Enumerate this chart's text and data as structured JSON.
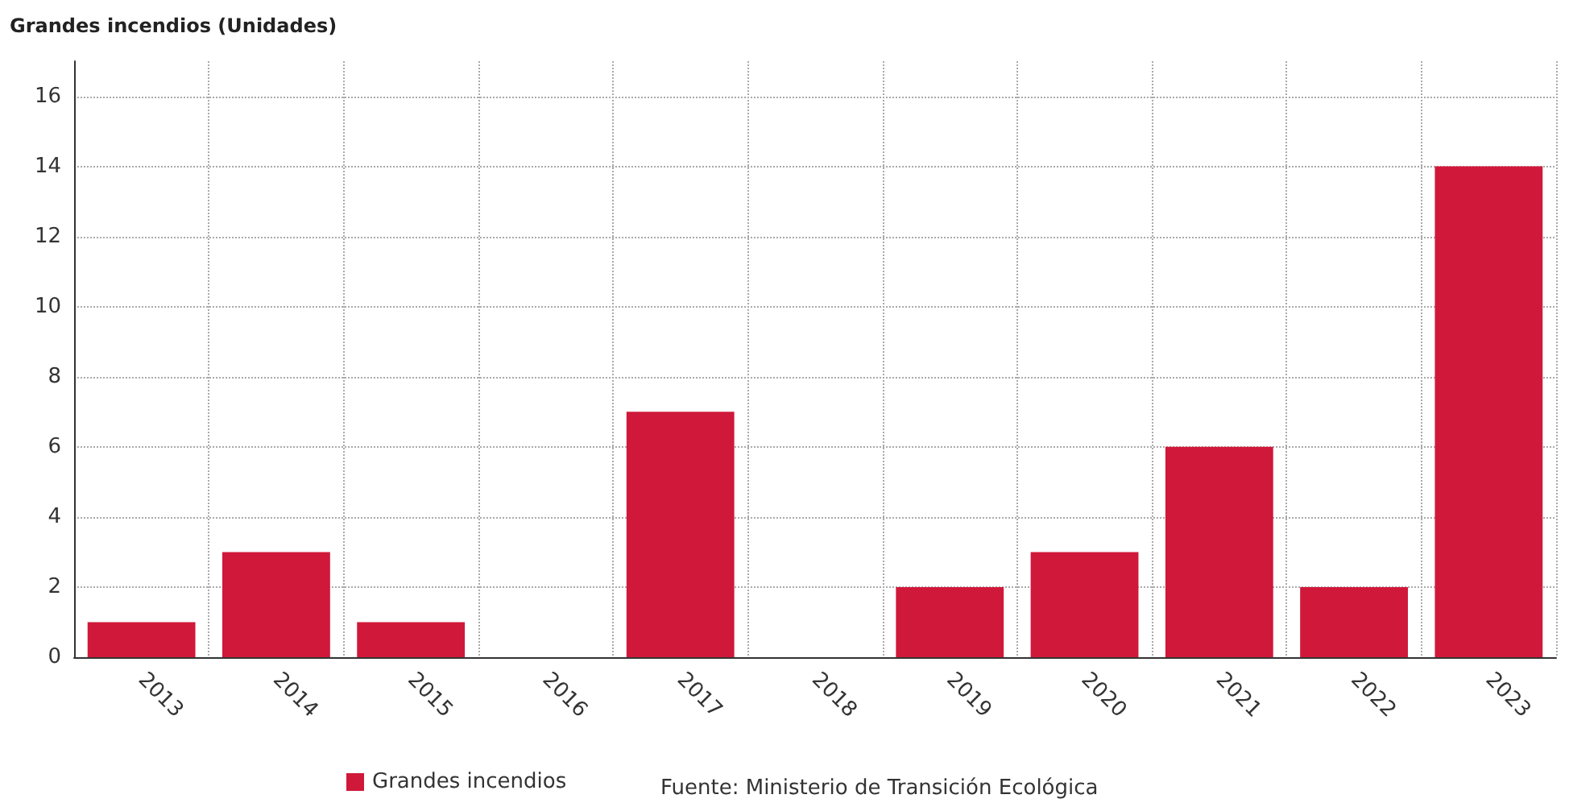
{
  "chart_data": {
    "type": "bar",
    "ylabel": "Grandes incendios (Unidades)",
    "categories": [
      "2013",
      "2014",
      "2015",
      "2016",
      "2017",
      "2018",
      "2019",
      "2020",
      "2021",
      "2022",
      "2023"
    ],
    "series": [
      {
        "name": "Grandes incendios",
        "color": "#d0183a",
        "values": [
          1,
          3,
          1,
          0,
          7,
          0,
          2,
          3,
          6,
          2,
          14
        ]
      }
    ],
    "ylim": [
      0,
      17
    ],
    "yticks": [
      0,
      2,
      4,
      6,
      8,
      10,
      12,
      14,
      16
    ],
    "grid": true,
    "legend": "bottom",
    "annotations": [
      "Fuente: Ministerio de Transición Ecológica"
    ]
  }
}
